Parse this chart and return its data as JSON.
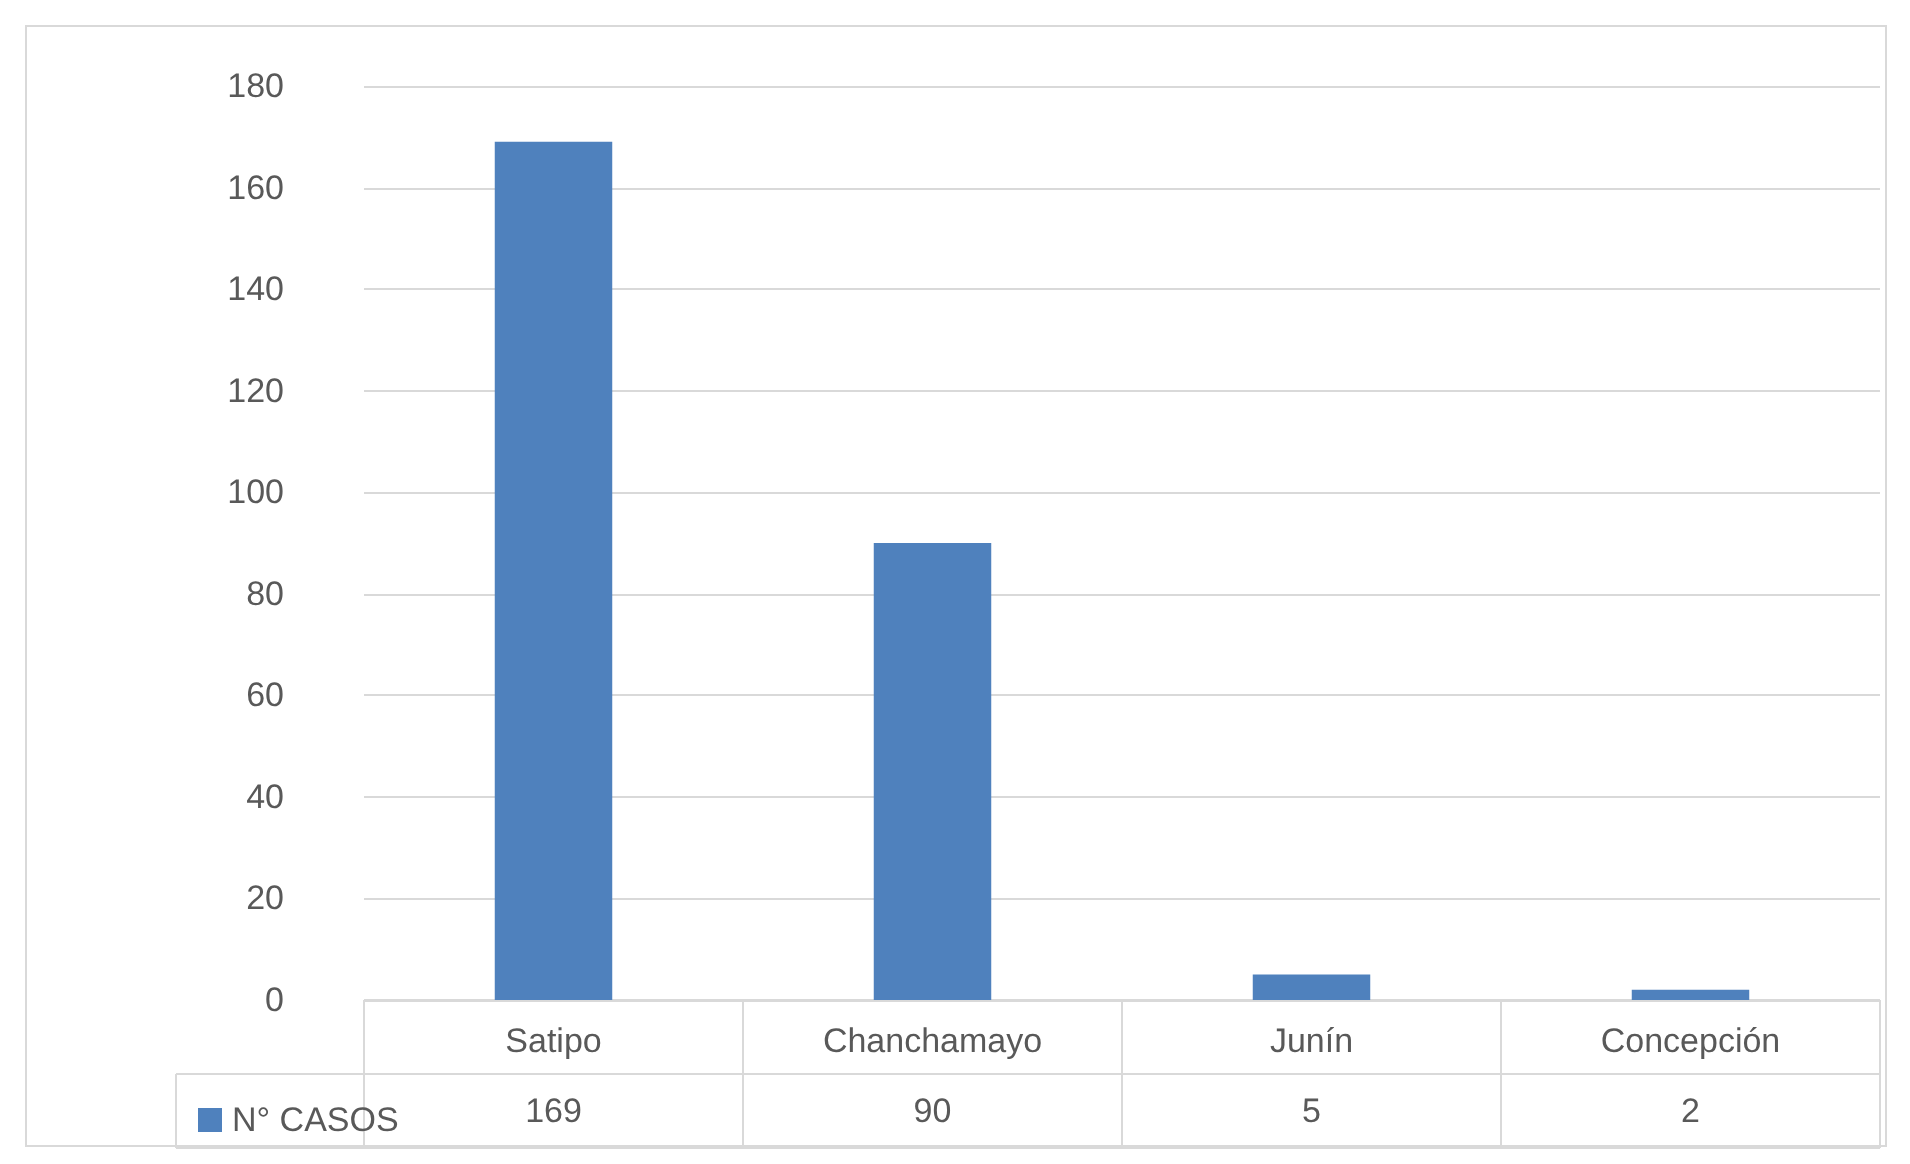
{
  "chart_data": {
    "type": "bar",
    "categories": [
      "Satipo",
      "Chanchamayo",
      "Junín",
      "Concepción"
    ],
    "series": [
      {
        "name": "N° CASOS",
        "color": "#4f81bd",
        "values": [
          169,
          90,
          5,
          2
        ]
      }
    ],
    "ylim": [
      0,
      180
    ],
    "yticks": [
      0,
      20,
      40,
      60,
      80,
      100,
      120,
      140,
      160,
      180
    ],
    "grid": "y",
    "legend": "bottom",
    "data_labels": true
  }
}
